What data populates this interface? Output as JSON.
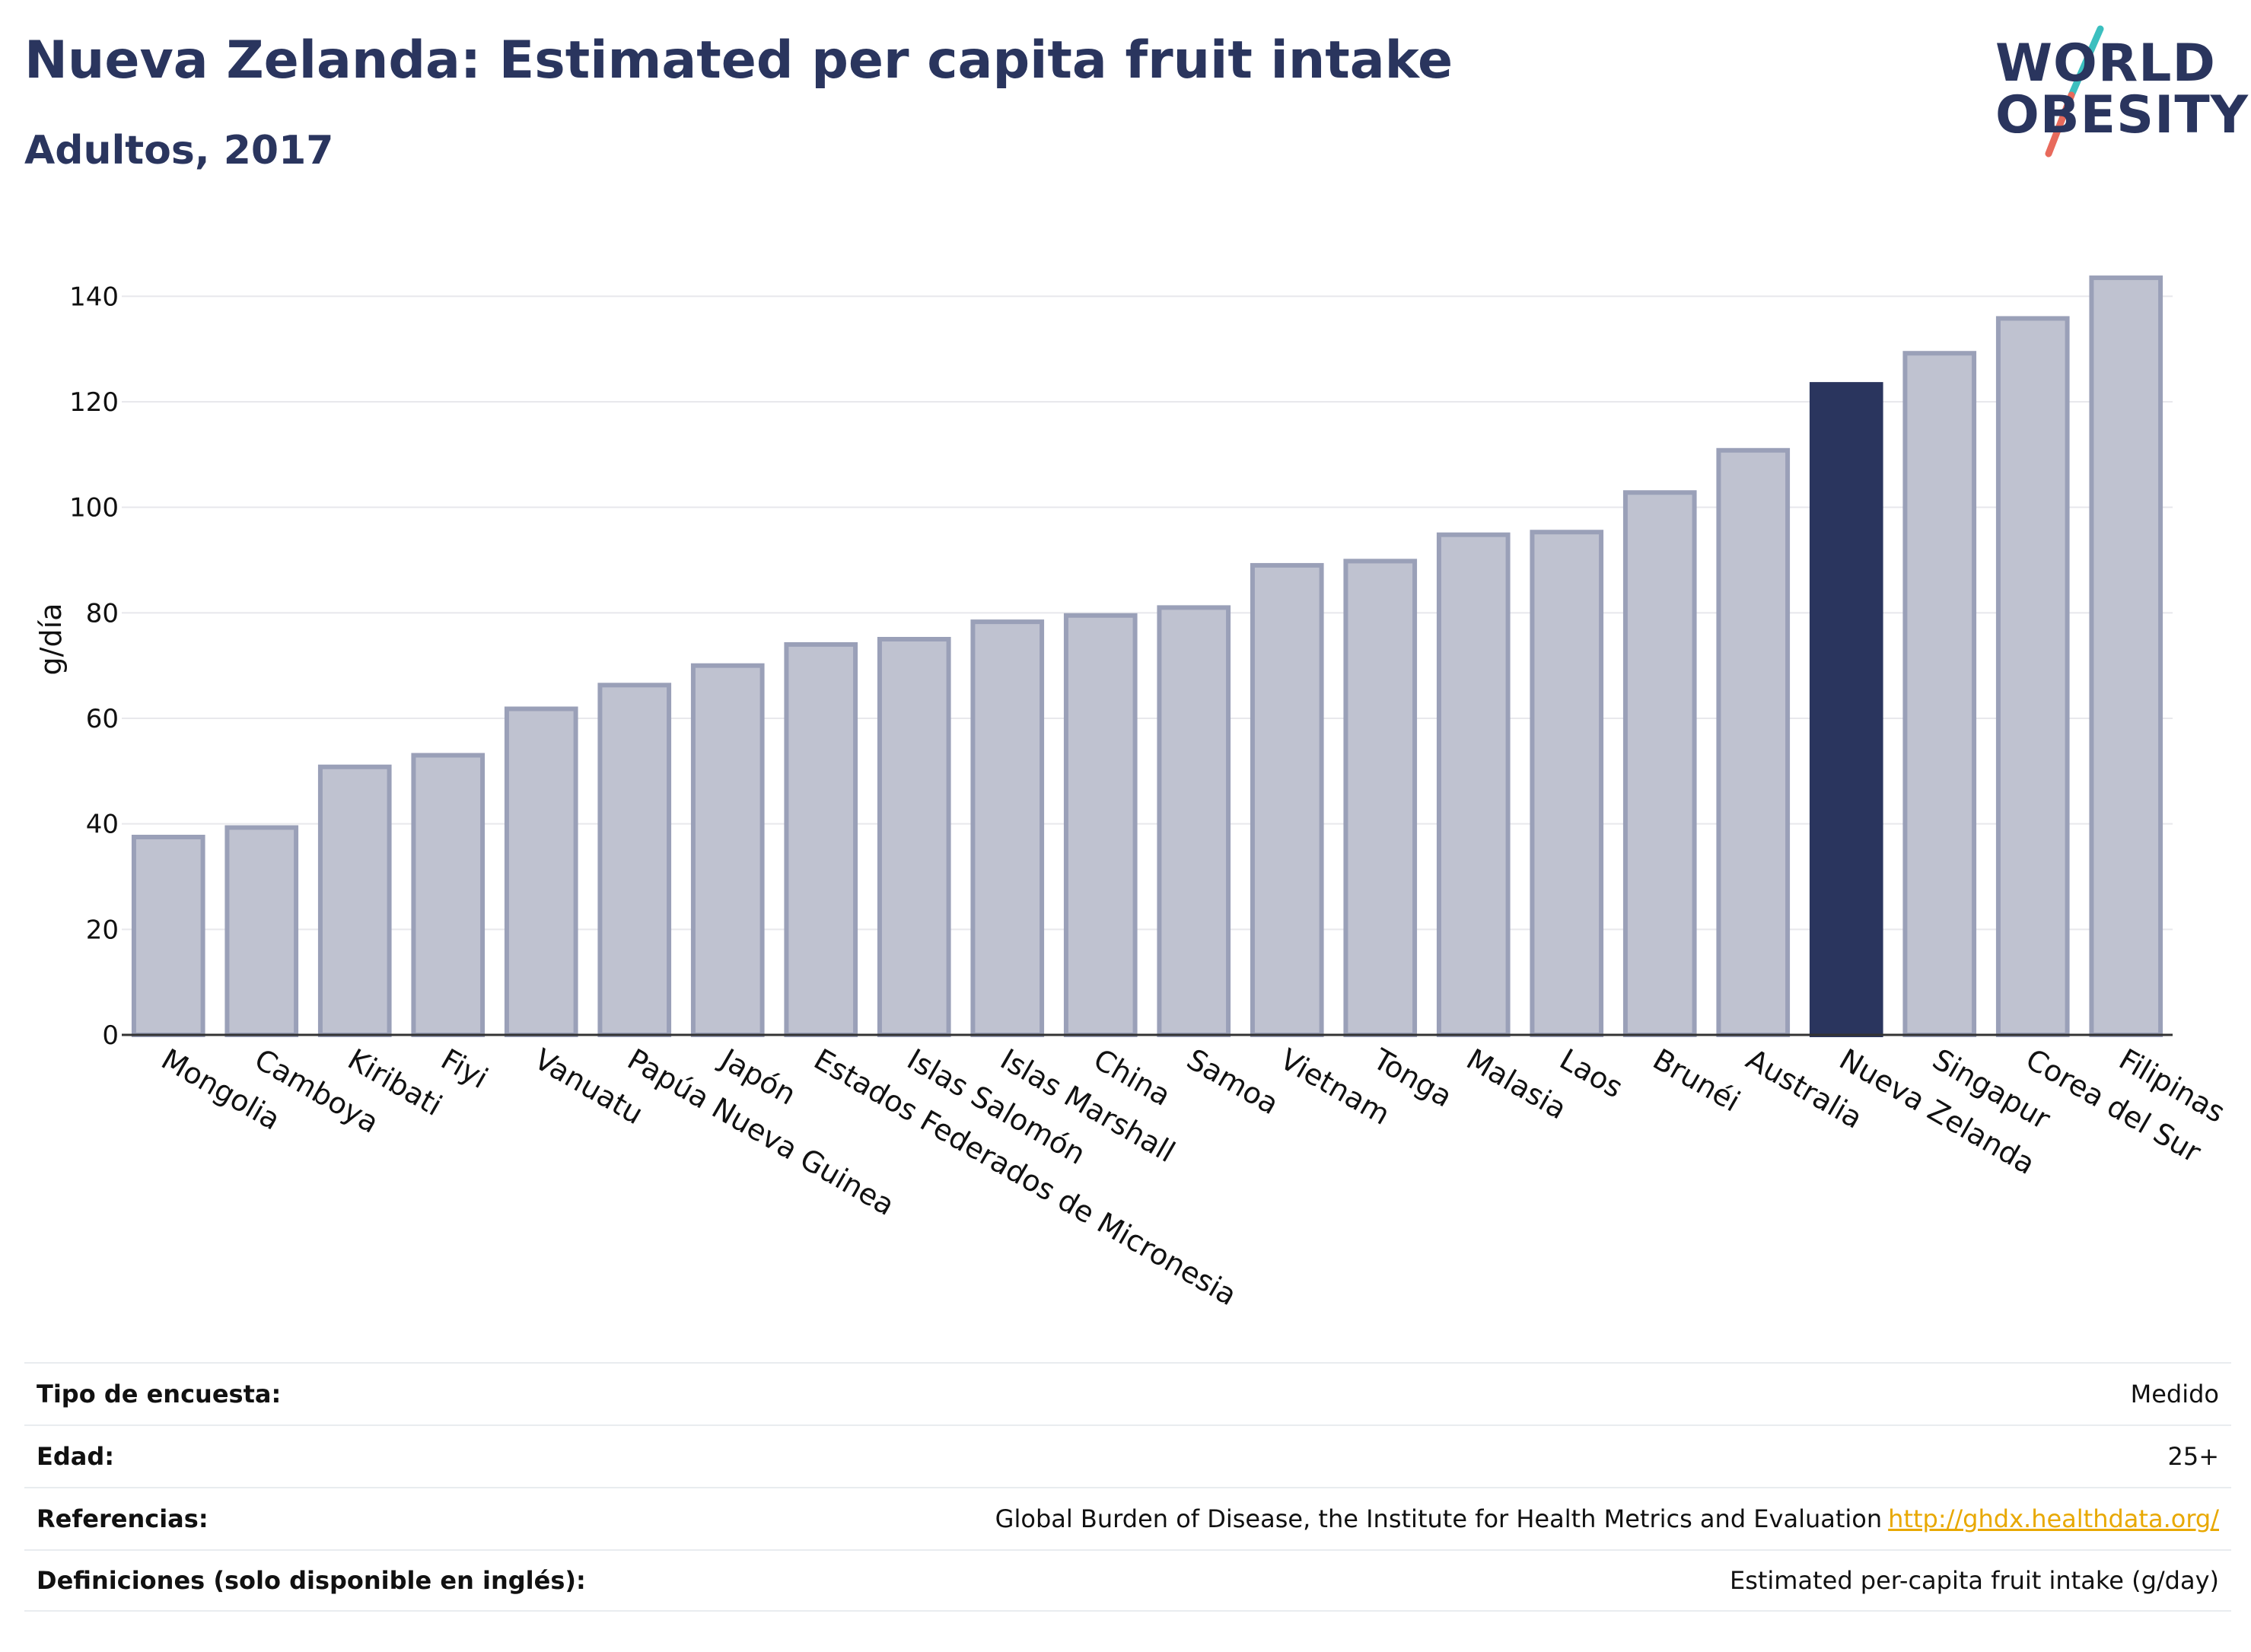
{
  "header": {
    "title": "Nueva Zelanda: Estimated per capita fruit intake",
    "subtitle": "Adultos, 2017"
  },
  "logo": {
    "line1": "WORLD",
    "line2": "OBESITY",
    "accent_colors": [
      "#3bbfbf",
      "#e86a5c"
    ]
  },
  "colors": {
    "bar_default": "#bfc2d0",
    "bar_border": "#9aa0b8",
    "bar_highlight": "#2a355e",
    "grid": "#e8e8ec",
    "axis_text": "#111111",
    "link": "#e8a800"
  },
  "chart_data": {
    "type": "bar",
    "title": "Nueva Zelanda: Estimated per capita fruit intake",
    "subtitle": "Adultos, 2017",
    "xlabel": "",
    "ylabel": "g/día",
    "ylim": [
      0,
      150
    ],
    "yticks": [
      0,
      20,
      40,
      60,
      80,
      100,
      120,
      140
    ],
    "grid": true,
    "highlight": "Nueva Zelanda",
    "categories": [
      "Mongolia",
      "Camboya",
      "Kiribati",
      "Fiyi",
      "Vanuatu",
      "Papúa Nueva Guinea",
      "Japón",
      "Estados Federados de Micronesia",
      "Islas Salomón",
      "Islas Marshall",
      "China",
      "Samoa",
      "Vietnam",
      "Tonga",
      "Malasia",
      "Laos",
      "Brunéi",
      "Australia",
      "Nueva Zelanda",
      "Singapur",
      "Corea del Sur",
      "Filipinas"
    ],
    "values": [
      37.5,
      39.3,
      50.8,
      53,
      61.8,
      66.3,
      70,
      74,
      75,
      78.3,
      79.5,
      81,
      89,
      89.8,
      94.8,
      95.3,
      102.8,
      110.8,
      123.3,
      129.2,
      135.8,
      143.5
    ]
  },
  "info": [
    {
      "label": "Tipo de encuesta:",
      "value": "Medido",
      "link": ""
    },
    {
      "label": "Edad:",
      "value": "25+",
      "link": ""
    },
    {
      "label": "Referencias:",
      "value": "Global Burden of Disease, the Institute for Health Metrics and Evaluation",
      "link": "http://ghdx.healthdata.org/"
    },
    {
      "label": "Definiciones (solo disponible en inglés):",
      "value": "Estimated per-capita fruit intake (g/day)",
      "link": ""
    }
  ]
}
